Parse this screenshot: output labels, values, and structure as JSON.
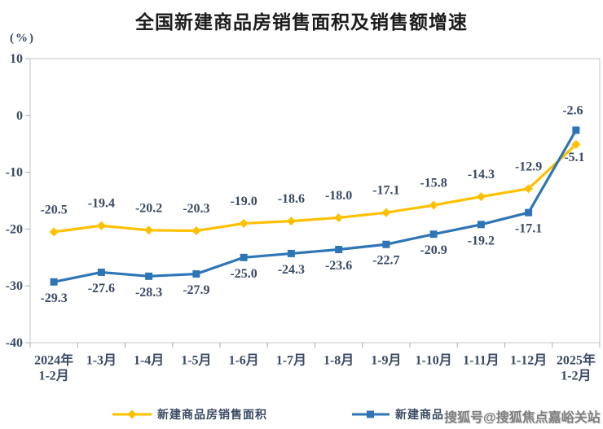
{
  "title": "全国新建商品房销售面积及销售额增速",
  "unit_label": "(%)",
  "watermark": "搜狐号@搜狐焦点嘉峪关站",
  "colors": {
    "area_series": "#FFC000",
    "amount_series": "#2E75B6",
    "label_text": "#3a4a63",
    "axis_line": "#c2c6cc",
    "tick_line": "#a8adb5"
  },
  "legend": [
    {
      "label": "新建商品房销售面积",
      "color": "#FFC000",
      "marker": "diamond"
    },
    {
      "label": "新建商品",
      "color": "#2E75B6",
      "marker": "square"
    }
  ],
  "chart_data": {
    "type": "line",
    "title": "全国新建商品房销售面积及销售额增速",
    "ylabel": "(%)",
    "ylim": [
      -40,
      10
    ],
    "yticks": [
      10,
      0,
      -10,
      -20,
      -30,
      -40
    ],
    "grid": false,
    "legend_position": "bottom",
    "categories": [
      "2024年\n1-2月",
      "1-3月",
      "1-4月",
      "1-5月",
      "1-6月",
      "1-7月",
      "1-8月",
      "1-9月",
      "1-10月",
      "1-11月",
      "1-12月",
      "2025年\n1-2月"
    ],
    "series": [
      {
        "name": "新建商品房销售面积",
        "color": "#FFC000",
        "marker": "diamond",
        "label_position": "above",
        "values": [
          -20.5,
          -19.4,
          -20.2,
          -20.3,
          -19.0,
          -18.6,
          -18.0,
          -17.1,
          -15.8,
          -14.3,
          -12.9,
          -5.1
        ]
      },
      {
        "name": "新建商品",
        "color": "#2E75B6",
        "marker": "square",
        "label_position": "below",
        "values": [
          -29.3,
          -27.6,
          -28.3,
          -27.9,
          -25.0,
          -24.3,
          -23.6,
          -22.7,
          -20.9,
          -19.2,
          -17.1,
          -2.6
        ]
      }
    ]
  }
}
